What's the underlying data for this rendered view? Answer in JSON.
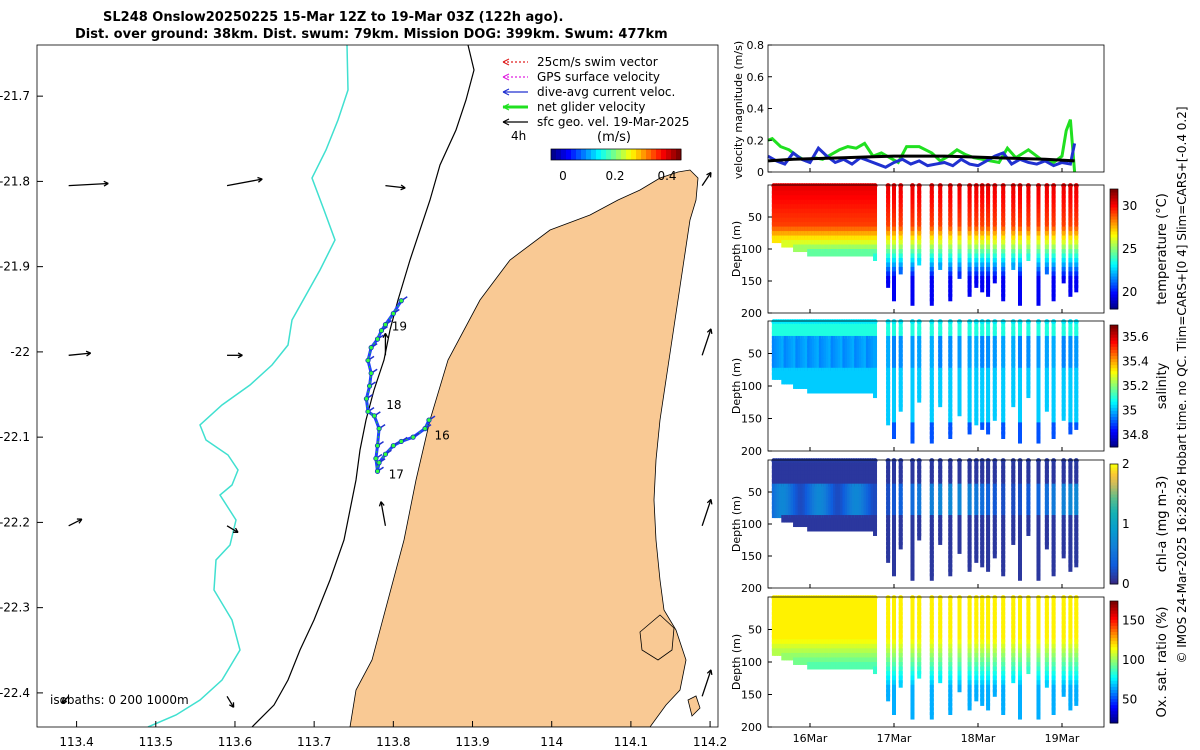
{
  "title_line1": "SL248 Onslow20250225 15-Mar 12Z to 19-Mar 03Z (122h ago).",
  "title_line2": "Dist. over ground: 38km. Dist. swum: 79km. Mission DOG: 399km. Swum: 477km",
  "colors": {
    "land": "#f9c994",
    "coast_line": "#000000",
    "isobath_shallow": "#40e0d0",
    "isobath_mid": "#000000",
    "track_dots": "#2040ff"
  },
  "chart_data": [
    {
      "type": "map",
      "name": "glider-track-map",
      "x_ticks": [
        "113.4",
        "113.5",
        "113.6",
        "113.7",
        "113.8",
        "113.9",
        "114",
        "114.1",
        "114.2"
      ],
      "y_ticks": [
        "-21.7",
        "-21.8",
        "-21.9",
        "-22",
        "-22.1",
        "-22.2",
        "-22.3",
        "-22.4"
      ],
      "xlim": [
        113.35,
        114.21
      ],
      "ylim": [
        -22.44,
        -21.64
      ],
      "legend": [
        {
          "label": "25cm/s swim vector",
          "color": "#e02020"
        },
        {
          "label": "GPS surface velocity",
          "color": "#e020e0"
        },
        {
          "label": "dive-avg current veloc.",
          "color": "#2030d0"
        },
        {
          "label": "net glider velocity",
          "color": "#20e020"
        },
        {
          "label": "sfc geo. vel. 19-Mar-2025",
          "color": "#000000"
        }
      ],
      "ref_arrow_label": "4h",
      "colorbar": {
        "title": "(m/s)",
        "ticks": [
          "0",
          "0.2",
          "0.4"
        ],
        "range": [
          0,
          0.5
        ]
      },
      "day_labels": [
        {
          "label": "16",
          "lon": 113.852,
          "lat": -22.098
        },
        {
          "label": "17",
          "lon": 113.794,
          "lat": -22.144
        },
        {
          "label": "18",
          "lon": 113.791,
          "lat": -22.062
        },
        {
          "label": "19",
          "lon": 113.798,
          "lat": -21.97
        }
      ],
      "isobath_label": "isobaths: 0   200  1000m",
      "track": [
        [
          113.845,
          -22.08
        ],
        [
          113.84,
          -22.09
        ],
        [
          113.825,
          -22.1
        ],
        [
          113.81,
          -22.105
        ],
        [
          113.8,
          -22.11
        ],
        [
          113.79,
          -22.12
        ],
        [
          113.782,
          -22.13
        ],
        [
          113.78,
          -22.14
        ],
        [
          113.778,
          -22.125
        ],
        [
          113.78,
          -22.11
        ],
        [
          113.782,
          -22.09
        ],
        [
          113.776,
          -22.075
        ],
        [
          113.768,
          -22.07
        ],
        [
          113.766,
          -22.055
        ],
        [
          113.77,
          -22.04
        ],
        [
          113.772,
          -22.025
        ],
        [
          113.768,
          -22.01
        ],
        [
          113.772,
          -21.995
        ],
        [
          113.78,
          -21.985
        ],
        [
          113.785,
          -21.975
        ],
        [
          113.79,
          -21.968
        ],
        [
          113.8,
          -21.955
        ],
        [
          113.81,
          -21.94
        ]
      ],
      "geo_vectors": [
        {
          "lon": 113.39,
          "lat": -21.805,
          "u": 0.018,
          "v": 0.001
        },
        {
          "lon": 113.59,
          "lat": -21.805,
          "u": 0.016,
          "v": 0.003
        },
        {
          "lon": 113.79,
          "lat": -21.805,
          "u": 0.009,
          "v": -0.001
        },
        {
          "lon": 114.19,
          "lat": -21.805,
          "u": 0.004,
          "v": 0.006
        },
        {
          "lon": 113.39,
          "lat": -22.004,
          "u": 0.01,
          "v": 0.001
        },
        {
          "lon": 113.59,
          "lat": -22.004,
          "u": 0.007,
          "v": 0.0
        },
        {
          "lon": 113.79,
          "lat": -22.004,
          "u": 0.0,
          "v": 0.01
        },
        {
          "lon": 114.19,
          "lat": -22.004,
          "u": 0.004,
          "v": 0.012
        },
        {
          "lon": 113.39,
          "lat": -22.204,
          "u": 0.006,
          "v": 0.003
        },
        {
          "lon": 113.59,
          "lat": -22.204,
          "u": 0.005,
          "v": -0.003
        },
        {
          "lon": 113.79,
          "lat": -22.204,
          "u": -0.002,
          "v": 0.011
        },
        {
          "lon": 114.19,
          "lat": -22.204,
          "u": 0.004,
          "v": 0.012
        },
        {
          "lon": 113.39,
          "lat": -22.404,
          "u": -0.003,
          "v": -0.003
        },
        {
          "lon": 113.59,
          "lat": -22.404,
          "u": 0.003,
          "v": -0.005
        },
        {
          "lon": 114.19,
          "lat": -22.404,
          "u": 0.004,
          "v": 0.012
        }
      ]
    },
    {
      "type": "line",
      "name": "velocity-magnitude",
      "ylabel": "velocity magnitude (m/s)",
      "ylim": [
        0,
        0.8
      ],
      "yticks": [
        "0",
        "0.2",
        "0.4",
        "0.6",
        "0.8"
      ],
      "xlim": [
        15.5,
        19.5
      ],
      "series": [
        {
          "name": "net glider velocity",
          "color": "#20e020",
          "x": [
            15.5,
            15.55,
            15.65,
            15.75,
            15.85,
            15.95,
            16.05,
            16.15,
            16.25,
            16.35,
            16.45,
            16.55,
            16.65,
            16.75,
            16.85,
            16.95,
            17.05,
            17.15,
            17.3,
            17.45,
            17.55,
            17.65,
            17.75,
            17.85,
            17.95,
            18.05,
            18.15,
            18.25,
            18.35,
            18.45,
            18.6,
            18.75,
            18.9,
            19.0,
            19.05,
            19.1,
            19.15
          ],
          "values": [
            0.2,
            0.21,
            0.16,
            0.14,
            0.1,
            0.07,
            0.09,
            0.08,
            0.11,
            0.14,
            0.16,
            0.15,
            0.18,
            0.1,
            0.12,
            0.09,
            0.06,
            0.16,
            0.16,
            0.12,
            0.07,
            0.1,
            0.14,
            0.11,
            0.09,
            0.08,
            0.07,
            0.06,
            0.15,
            0.09,
            0.14,
            0.08,
            0.06,
            0.1,
            0.26,
            0.33,
            0.0
          ]
        },
        {
          "name": "dive-avg current veloc.",
          "color": "#2030d0",
          "x": [
            15.5,
            15.6,
            15.7,
            15.8,
            15.9,
            16.0,
            16.1,
            16.2,
            16.3,
            16.4,
            16.5,
            16.6,
            16.7,
            16.8,
            16.9,
            17.0,
            17.1,
            17.2,
            17.3,
            17.4,
            17.5,
            17.6,
            17.7,
            17.8,
            17.9,
            18.0,
            18.1,
            18.2,
            18.3,
            18.4,
            18.5,
            18.6,
            18.7,
            18.8,
            18.9,
            19.0,
            19.1,
            19.15
          ],
          "values": [
            0.1,
            0.07,
            0.05,
            0.12,
            0.08,
            0.06,
            0.15,
            0.1,
            0.06,
            0.08,
            0.05,
            0.09,
            0.07,
            0.05,
            0.03,
            0.06,
            0.08,
            0.05,
            0.07,
            0.04,
            0.05,
            0.06,
            0.04,
            0.08,
            0.05,
            0.04,
            0.07,
            0.1,
            0.12,
            0.05,
            0.08,
            0.06,
            0.05,
            0.07,
            0.04,
            0.06,
            0.05,
            0.18
          ]
        },
        {
          "name": "sfc geo. vel.",
          "color": "#000000",
          "x": [
            15.5,
            15.8,
            16.1,
            16.4,
            16.7,
            17.0,
            17.3,
            17.6,
            17.9,
            18.2,
            18.5,
            18.8,
            19.1,
            19.15
          ],
          "values": [
            0.07,
            0.08,
            0.085,
            0.09,
            0.095,
            0.1,
            0.1,
            0.1,
            0.095,
            0.09,
            0.085,
            0.08,
            0.072,
            0.07
          ]
        }
      ]
    },
    {
      "type": "heatmap",
      "name": "temperature-section",
      "ylabel": "Depth (m)",
      "ylim": [
        0,
        200
      ],
      "yticks": [
        "50",
        "100",
        "150",
        "200"
      ],
      "cbar_label": "temperature (°C)",
      "cbar_ticks": [
        "20",
        "25",
        "30"
      ],
      "crange": [
        18,
        32
      ],
      "surface": 30.5,
      "deep": 19.5,
      "thermocline": 60
    },
    {
      "type": "heatmap",
      "name": "salinity-section",
      "ylabel": "Depth (m)",
      "ylim": [
        0,
        200
      ],
      "yticks": [
        "50",
        "100",
        "150",
        "200"
      ],
      "cbar_label": "salinity",
      "cbar_ticks": [
        "34.8",
        "35",
        "35.2",
        "35.4",
        "35.6"
      ],
      "crange": [
        34.7,
        35.7
      ],
      "surface": 35.05,
      "deep": 35.0,
      "thermocline": 70
    },
    {
      "type": "heatmap",
      "name": "chla-section",
      "ylabel": "Depth (m)",
      "ylim": [
        0,
        200
      ],
      "yticks": [
        "50",
        "100",
        "150",
        "200"
      ],
      "cbar_label": "chl-a (mg m-3)",
      "cbar_ticks": [
        "0",
        "1",
        "2"
      ],
      "crange": [
        0,
        2
      ],
      "surface": 0.1,
      "deep": 0.05,
      "thermocline": 60
    },
    {
      "type": "heatmap",
      "name": "oxygen-section",
      "ylabel": "Depth (m)",
      "ylim": [
        0,
        200
      ],
      "yticks": [
        "50",
        "100",
        "150",
        "200"
      ],
      "cbar_label": "Ox. sat. ratio (%)",
      "cbar_ticks": [
        "50",
        "100",
        "150"
      ],
      "crange": [
        20,
        175
      ],
      "surface": 118,
      "deep": 65,
      "thermocline": 60
    },
    {
      "type": "axis",
      "name": "time-axis",
      "xticks": [
        "16Mar",
        "17Mar",
        "18Mar",
        "19Mar"
      ],
      "xlim": [
        15.5,
        19.5
      ]
    }
  ],
  "side_note": "© IMOS 24-Mar-2025 16:28:26 Hobart time. no QC. Tlim=CARS+[0 4] Slim=CARS+[-0.4 0.2]"
}
